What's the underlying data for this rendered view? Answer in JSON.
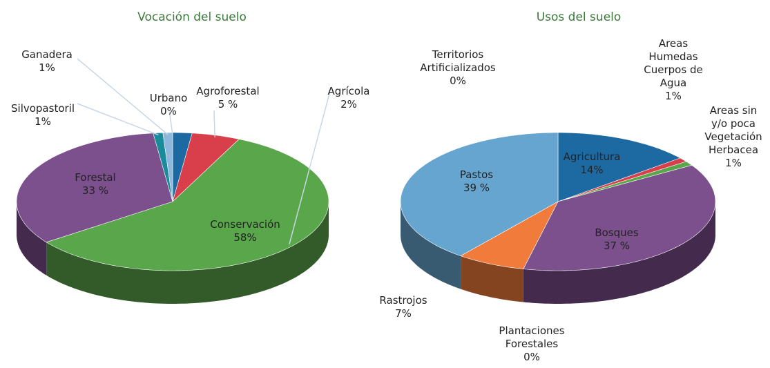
{
  "chart_data": [
    {
      "type": "pie3d",
      "title": "Vocación del suelo",
      "categories": [
        "Agrícola",
        "Agroforestal",
        "Conservación",
        "Forestal",
        "Silvopastoril",
        "Ganadera",
        "Urbano"
      ],
      "values": [
        2,
        5,
        58,
        33,
        1,
        1,
        0
      ],
      "value_labels": [
        "2%",
        "5 %",
        "58%",
        "33 %",
        "1%",
        "1%",
        "0%"
      ],
      "colors": [
        "#1d6aa3",
        "#d83f4a",
        "#5aa64b",
        "#7c4f8d",
        "#1a8b9b",
        "#8fb7dc",
        "#f07b3b"
      ]
    },
    {
      "type": "pie3d",
      "title": "Usos del suelo",
      "categories": [
        "Agricultura",
        "Areas\nHumedas\nCuerpos de\nAgua",
        "Areas sin\ny/o poca\nVegetación\nHerbacea",
        "Bosques",
        "Plantaciones\nForestales",
        "Rastrojos",
        "Pastos",
        "Territorios\nArtificializados"
      ],
      "values": [
        14,
        1,
        1,
        37,
        0,
        7,
        39,
        0
      ],
      "value_labels": [
        "14%",
        "1%",
        "1%",
        "37 %",
        "0%",
        "7%",
        "39 %",
        "0%"
      ],
      "colors": [
        "#1d6aa3",
        "#d83f4a",
        "#5aa64b",
        "#7c4f8d",
        "#1a7080",
        "#f07b3b",
        "#66a5cf",
        "#a0a0a0"
      ]
    }
  ]
}
